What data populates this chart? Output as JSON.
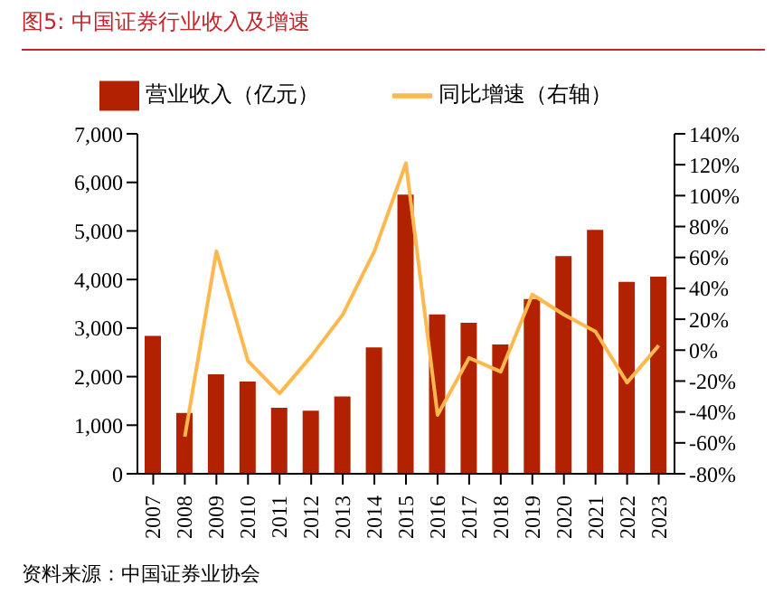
{
  "chart_data": {
    "type": "bar",
    "title": "图5:   中国证券行业收入及增速",
    "categories": [
      "2007",
      "2008",
      "2009",
      "2010",
      "2011",
      "2012",
      "2013",
      "2014",
      "2015",
      "2016",
      "2017",
      "2018",
      "2019",
      "2020",
      "2021",
      "2022",
      "2023"
    ],
    "series": [
      {
        "name": "营业收入（亿元）",
        "color": "#b22200",
        "values": [
          2840,
          1250,
          2050,
          1900,
          1360,
          1300,
          1590,
          2600,
          5750,
          3280,
          3110,
          2660,
          3600,
          4480,
          5020,
          3950,
          4060
        ]
      },
      {
        "name": "同比增速（右轴）",
        "type": "line",
        "axis": "y2",
        "color": "#ffb84d",
        "values": [
          null,
          -56,
          64,
          -7,
          -28,
          -4,
          23,
          64,
          121,
          -42,
          -5,
          -14,
          36,
          23,
          12,
          -21,
          3
        ]
      }
    ],
    "ylim": [
      0,
      7000
    ],
    "yticks": [
      {
        "value": 0,
        "label": "0"
      },
      {
        "value": 1000,
        "label": "1,000"
      },
      {
        "value": 2000,
        "label": "2,000"
      },
      {
        "value": 3000,
        "label": "3,000"
      },
      {
        "value": 4000,
        "label": "4,000"
      },
      {
        "value": 5000,
        "label": "5,000"
      },
      {
        "value": 6000,
        "label": "6,000"
      },
      {
        "value": 7000,
        "label": "7,000"
      }
    ],
    "y2lim": [
      -80,
      140
    ],
    "y2ticks": [
      {
        "value": -80,
        "label": "-80%"
      },
      {
        "value": -60,
        "label": "-60%"
      },
      {
        "value": -40,
        "label": "-40%"
      },
      {
        "value": -20,
        "label": "-20%"
      },
      {
        "value": 0,
        "label": "0%"
      },
      {
        "value": 20,
        "label": "20%"
      },
      {
        "value": 40,
        "label": "40%"
      },
      {
        "value": 60,
        "label": "60%"
      },
      {
        "value": 80,
        "label": "80%"
      },
      {
        "value": 100,
        "label": "100%"
      },
      {
        "value": 120,
        "label": "120%"
      },
      {
        "value": 140,
        "label": "140%"
      }
    ],
    "legend": "top",
    "grid": false,
    "marker": "none",
    "line_style": "solid",
    "annotations": [
      "资料来源：中国证券业协会"
    ]
  }
}
